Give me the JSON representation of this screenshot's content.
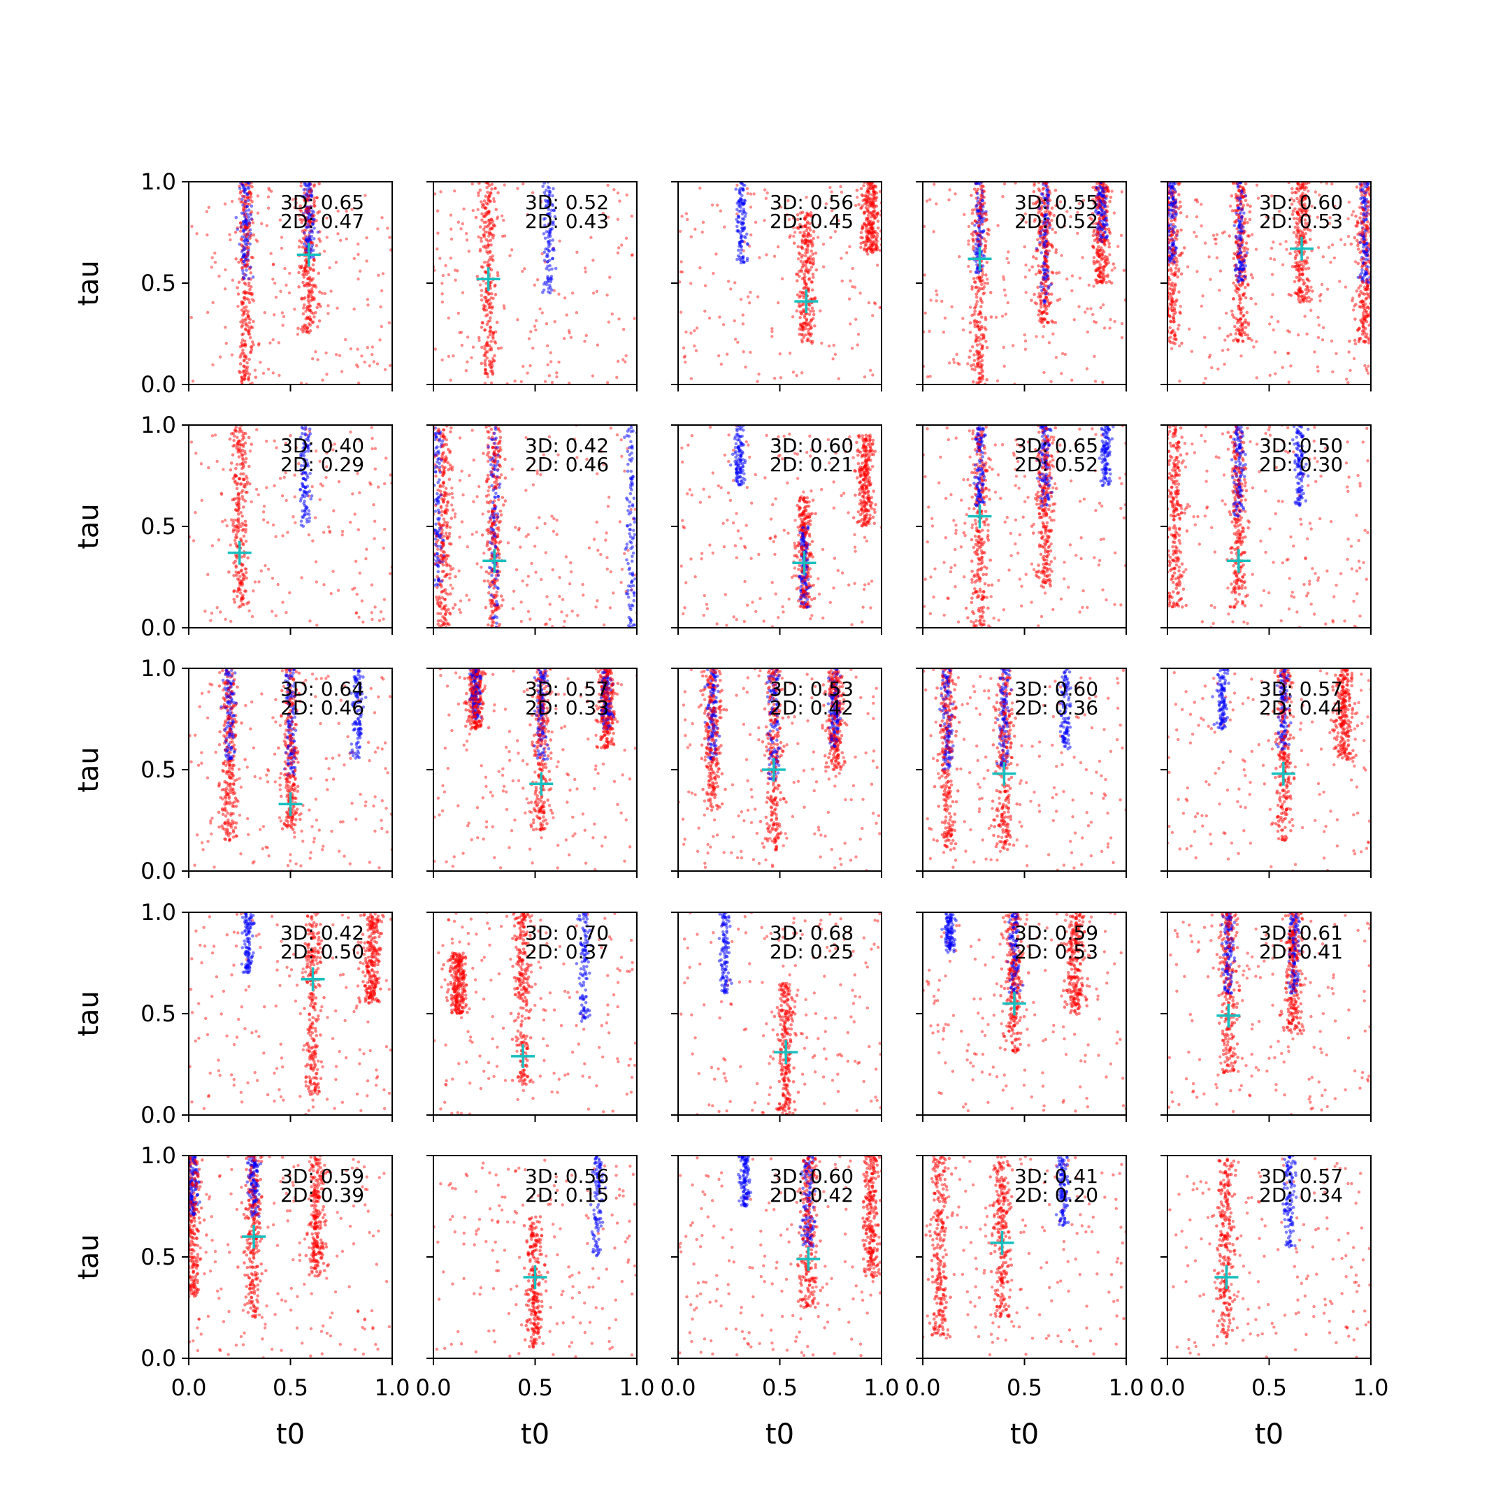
{
  "figure": {
    "xlabel": "t0",
    "ylabel": "tau",
    "colors": {
      "red_points": "#ff0000",
      "blue_points": "#0000ff",
      "marker": "#17bfbf",
      "axes": "#000000"
    }
  },
  "chart_data": {
    "type": "scatter",
    "grid": false,
    "layout": "5x5 small multiples, shared axes",
    "xlim": [
      0.0,
      1.0
    ],
    "ylim": [
      0.0,
      1.0
    ],
    "xticks": [
      "0.0",
      "0.5",
      "1.0"
    ],
    "yticks": [
      "0.0",
      "0.5",
      "1.0"
    ],
    "panels": [
      {
        "label3d": "3D: 0.65",
        "label2d": "2D: 0.47",
        "marker": [
          0.59,
          0.64
        ],
        "red_bands": [
          [
            0.28,
            1.0,
            0.0
          ],
          [
            0.59,
            1.0,
            0.25
          ]
        ],
        "blue_bands": [
          [
            0.28,
            1.0,
            0.52
          ],
          [
            0.59,
            1.0,
            0.62
          ]
        ]
      },
      {
        "label3d": "3D: 0.52",
        "label2d": "2D: 0.43",
        "marker": [
          0.27,
          0.52
        ],
        "red_bands": [
          [
            0.27,
            1.0,
            0.05
          ]
        ],
        "blue_bands": [
          [
            0.57,
            1.0,
            0.45
          ]
        ]
      },
      {
        "label3d": "3D: 0.56",
        "label2d": "2D: 0.45",
        "marker": [
          0.63,
          0.41
        ],
        "red_bands": [
          [
            0.63,
            0.85,
            0.2
          ],
          [
            0.95,
            1.0,
            0.65
          ]
        ],
        "blue_bands": [
          [
            0.31,
            1.0,
            0.6
          ]
        ]
      },
      {
        "label3d": "3D: 0.55",
        "label2d": "2D: 0.52",
        "marker": [
          0.28,
          0.62
        ],
        "red_bands": [
          [
            0.28,
            1.0,
            0.0
          ],
          [
            0.6,
            1.0,
            0.3
          ],
          [
            0.88,
            1.0,
            0.5
          ]
        ],
        "blue_bands": [
          [
            0.28,
            1.0,
            0.55
          ],
          [
            0.6,
            1.0,
            0.4
          ],
          [
            0.88,
            1.0,
            0.7
          ]
        ]
      },
      {
        "label3d": "3D: 0.60",
        "label2d": "2D: 0.53",
        "marker": [
          0.66,
          0.67
        ],
        "red_bands": [
          [
            0.02,
            1.0,
            0.2
          ],
          [
            0.36,
            1.0,
            0.2
          ],
          [
            0.66,
            1.0,
            0.4
          ],
          [
            0.97,
            1.0,
            0.2
          ]
        ],
        "blue_bands": [
          [
            0.02,
            1.0,
            0.6
          ],
          [
            0.36,
            1.0,
            0.5
          ],
          [
            0.97,
            1.0,
            0.5
          ]
        ]
      },
      {
        "label3d": "3D: 0.40",
        "label2d": "2D: 0.29",
        "marker": [
          0.25,
          0.37
        ],
        "red_bands": [
          [
            0.25,
            1.0,
            0.1
          ]
        ],
        "blue_bands": [
          [
            0.57,
            1.0,
            0.5
          ]
        ]
      },
      {
        "label3d": "3D: 0.42",
        "label2d": "2D: 0.46",
        "marker": [
          0.3,
          0.33
        ],
        "red_bands": [
          [
            0.3,
            1.0,
            0.0
          ],
          [
            0.05,
            1.0,
            0.0
          ]
        ],
        "blue_bands": [
          [
            0.3,
            1.0,
            0.0
          ],
          [
            0.02,
            1.0,
            0.2
          ],
          [
            0.97,
            1.0,
            0.0
          ]
        ]
      },
      {
        "label3d": "3D: 0.60",
        "label2d": "2D: 0.21",
        "marker": [
          0.62,
          0.32
        ],
        "red_bands": [
          [
            0.62,
            0.65,
            0.1
          ],
          [
            0.92,
            0.95,
            0.5
          ]
        ],
        "blue_bands": [
          [
            0.3,
            1.0,
            0.7
          ],
          [
            0.62,
            0.5,
            0.1
          ]
        ]
      },
      {
        "label3d": "3D: 0.65",
        "label2d": "2D: 0.52",
        "marker": [
          0.28,
          0.55
        ],
        "red_bands": [
          [
            0.28,
            1.0,
            0.0
          ],
          [
            0.6,
            1.0,
            0.2
          ]
        ],
        "blue_bands": [
          [
            0.28,
            1.0,
            0.6
          ],
          [
            0.6,
            1.0,
            0.6
          ],
          [
            0.9,
            1.0,
            0.7
          ]
        ]
      },
      {
        "label3d": "3D: 0.50",
        "label2d": "2D: 0.30",
        "marker": [
          0.35,
          0.33
        ],
        "red_bands": [
          [
            0.04,
            1.0,
            0.1
          ],
          [
            0.35,
            1.0,
            0.1
          ]
        ],
        "blue_bands": [
          [
            0.35,
            1.0,
            0.55
          ],
          [
            0.65,
            1.0,
            0.6
          ]
        ]
      },
      {
        "label3d": "3D: 0.64",
        "label2d": "2D: 0.46",
        "marker": [
          0.5,
          0.33
        ],
        "red_bands": [
          [
            0.2,
            1.0,
            0.15
          ],
          [
            0.5,
            1.0,
            0.2
          ]
        ],
        "blue_bands": [
          [
            0.2,
            1.0,
            0.55
          ],
          [
            0.5,
            1.0,
            0.45
          ],
          [
            0.83,
            1.0,
            0.55
          ]
        ]
      },
      {
        "label3d": "3D: 0.57",
        "label2d": "2D: 0.33",
        "marker": [
          0.53,
          0.43
        ],
        "red_bands": [
          [
            0.53,
            1.0,
            0.2
          ],
          [
            0.21,
            1.0,
            0.7
          ],
          [
            0.85,
            1.0,
            0.6
          ]
        ],
        "blue_bands": [
          [
            0.21,
            1.0,
            0.75
          ],
          [
            0.53,
            1.0,
            0.55
          ],
          [
            0.85,
            1.0,
            0.7
          ]
        ]
      },
      {
        "label3d": "3D: 0.53",
        "label2d": "2D: 0.42",
        "marker": [
          0.47,
          0.5
        ],
        "red_bands": [
          [
            0.47,
            1.0,
            0.1
          ],
          [
            0.17,
            1.0,
            0.3
          ],
          [
            0.77,
            1.0,
            0.5
          ]
        ],
        "blue_bands": [
          [
            0.17,
            1.0,
            0.55
          ],
          [
            0.47,
            1.0,
            0.45
          ],
          [
            0.77,
            1.0,
            0.6
          ]
        ]
      },
      {
        "label3d": "3D: 0.60",
        "label2d": "2D: 0.36",
        "marker": [
          0.4,
          0.48
        ],
        "red_bands": [
          [
            0.12,
            1.0,
            0.1
          ],
          [
            0.4,
            1.0,
            0.1
          ]
        ],
        "blue_bands": [
          [
            0.12,
            1.0,
            0.5
          ],
          [
            0.4,
            1.0,
            0.5
          ],
          [
            0.7,
            1.0,
            0.6
          ]
        ]
      },
      {
        "label3d": "3D: 0.57",
        "label2d": "2D: 0.44",
        "marker": [
          0.57,
          0.48
        ],
        "red_bands": [
          [
            0.57,
            1.0,
            0.15
          ],
          [
            0.87,
            1.0,
            0.55
          ]
        ],
        "blue_bands": [
          [
            0.27,
            1.0,
            0.7
          ],
          [
            0.57,
            1.0,
            0.6
          ]
        ]
      },
      {
        "label3d": "3D: 0.42",
        "label2d": "2D: 0.50",
        "marker": [
          0.61,
          0.67
        ],
        "red_bands": [
          [
            0.61,
            1.0,
            0.1
          ],
          [
            0.9,
            1.0,
            0.55
          ]
        ],
        "blue_bands": [
          [
            0.29,
            1.0,
            0.7
          ]
        ]
      },
      {
        "label3d": "3D: 0.70",
        "label2d": "2D: 0.37",
        "marker": [
          0.44,
          0.29
        ],
        "red_bands": [
          [
            0.44,
            1.0,
            0.15
          ],
          [
            0.12,
            0.8,
            0.5
          ]
        ],
        "blue_bands": [
          [
            0.74,
            1.0,
            0.45
          ]
        ]
      },
      {
        "label3d": "3D: 0.68",
        "label2d": "2D: 0.25",
        "marker": [
          0.53,
          0.31
        ],
        "red_bands": [
          [
            0.53,
            0.65,
            0.0
          ]
        ],
        "blue_bands": [
          [
            0.23,
            1.0,
            0.6
          ]
        ]
      },
      {
        "label3d": "3D: 0.59",
        "label2d": "2D: 0.53",
        "marker": [
          0.45,
          0.55
        ],
        "red_bands": [
          [
            0.45,
            1.0,
            0.3
          ],
          [
            0.75,
            1.0,
            0.5
          ]
        ],
        "blue_bands": [
          [
            0.13,
            1.0,
            0.8
          ],
          [
            0.45,
            1.0,
            0.6
          ]
        ]
      },
      {
        "label3d": "3D: 0.61",
        "label2d": "2D: 0.41",
        "marker": [
          0.3,
          0.49
        ],
        "red_bands": [
          [
            0.3,
            1.0,
            0.2
          ],
          [
            0.62,
            1.0,
            0.4
          ]
        ],
        "blue_bands": [
          [
            0.3,
            1.0,
            0.6
          ],
          [
            0.62,
            1.0,
            0.6
          ]
        ]
      },
      {
        "label3d": "3D: 0.59",
        "label2d": "2D: 0.39",
        "marker": [
          0.32,
          0.6
        ],
        "red_bands": [
          [
            0.32,
            1.0,
            0.2
          ],
          [
            0.02,
            1.0,
            0.3
          ],
          [
            0.63,
            1.0,
            0.4
          ]
        ],
        "blue_bands": [
          [
            0.32,
            1.0,
            0.7
          ],
          [
            0.02,
            1.0,
            0.7
          ]
        ]
      },
      {
        "label3d": "3D: 0.56",
        "label2d": "2D: 0.15",
        "marker": [
          0.5,
          0.4
        ],
        "red_bands": [
          [
            0.5,
            0.7,
            0.05
          ]
        ],
        "blue_bands": [
          [
            0.81,
            1.0,
            0.5
          ]
        ]
      },
      {
        "label3d": "3D: 0.60",
        "label2d": "2D: 0.42",
        "marker": [
          0.64,
          0.49
        ],
        "red_bands": [
          [
            0.64,
            1.0,
            0.25
          ],
          [
            0.95,
            1.0,
            0.4
          ]
        ],
        "blue_bands": [
          [
            0.33,
            1.0,
            0.75
          ],
          [
            0.64,
            1.0,
            0.55
          ]
        ]
      },
      {
        "label3d": "3D: 0.41",
        "label2d": "2D: 0.20",
        "marker": [
          0.39,
          0.57
        ],
        "red_bands": [
          [
            0.08,
            1.0,
            0.1
          ],
          [
            0.39,
            1.0,
            0.2
          ]
        ],
        "blue_bands": [
          [
            0.69,
            1.0,
            0.65
          ]
        ]
      },
      {
        "label3d": "3D: 0.57",
        "label2d": "2D: 0.34",
        "marker": [
          0.29,
          0.4
        ],
        "red_bands": [
          [
            0.29,
            1.0,
            0.1
          ]
        ],
        "blue_bands": [
          [
            0.6,
            1.0,
            0.55
          ]
        ]
      }
    ]
  }
}
